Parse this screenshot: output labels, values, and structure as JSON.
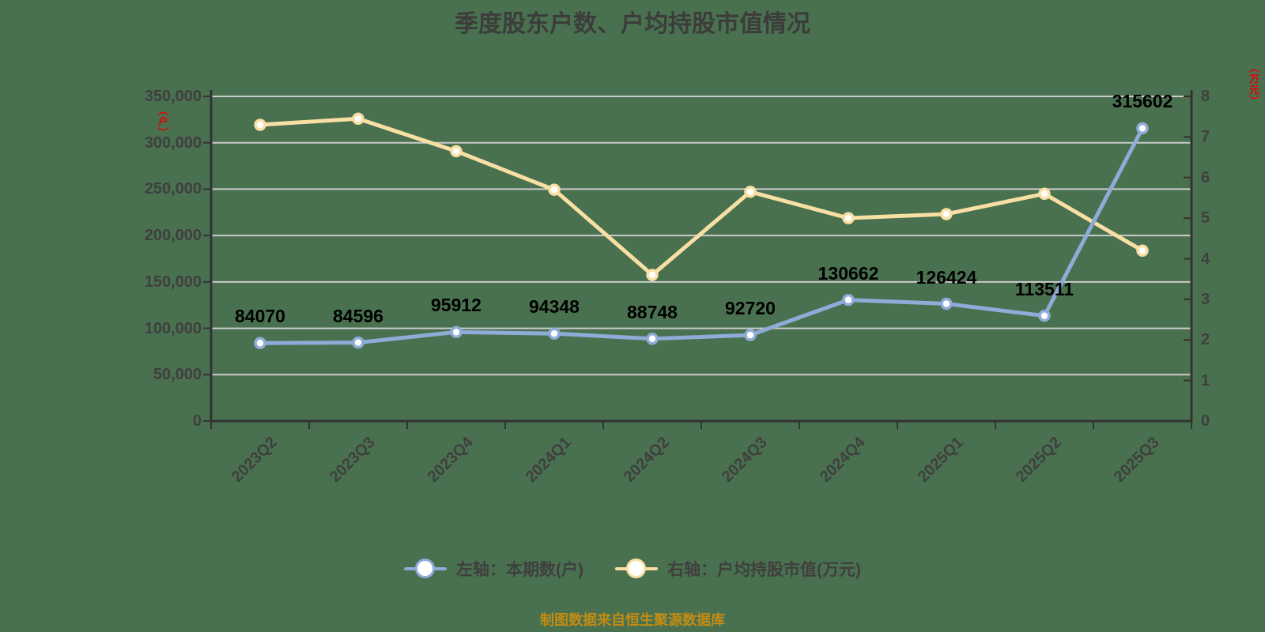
{
  "title": "季度股东户数、户均持股市值情况",
  "footer": "制图数据来自恒生聚源数据库",
  "left_axis": {
    "unit_label": "（户）"
  },
  "right_axis": {
    "unit_label": "（万元）"
  },
  "legend": [
    {
      "label": "左轴：本期数(户)",
      "color": "#8fabd8"
    },
    {
      "label": "右轴：户均持股市值(万元)",
      "color": "#f8dfa3"
    }
  ],
  "colors": {
    "background": "#49714f",
    "grid": "#cccccc",
    "axis": "#333333",
    "text": "#3f3f3f",
    "data_label": "#000000",
    "unit_label": "#e60000",
    "footer": "#c28c14",
    "series_left": "#8fabd8",
    "series_right": "#f8dfa3",
    "marker_fill": "#ffffff"
  },
  "chart_data": {
    "type": "line",
    "title": "季度股东户数、户均持股市值情况",
    "categories": [
      "2023Q2",
      "2023Q3",
      "2023Q4",
      "2024Q1",
      "2024Q2",
      "2024Q3",
      "2024Q4",
      "2025Q1",
      "2025Q2",
      "2025Q3"
    ],
    "series": [
      {
        "name": "左轴：本期数(户)",
        "axis": "left",
        "color": "#8fabd8",
        "values": [
          84070,
          84596,
          95912,
          94348,
          88748,
          92720,
          130662,
          126424,
          113511,
          315602
        ],
        "labels": [
          "84070",
          "84596",
          "95912",
          "94348",
          "88748",
          "92720",
          "130662",
          "126424",
          "113511",
          "315602"
        ]
      },
      {
        "name": "右轴：户均持股市值(万元)",
        "axis": "right",
        "color": "#f8dfa3",
        "values": [
          7.3,
          7.45,
          6.65,
          5.7,
          3.6,
          5.65,
          5.0,
          5.1,
          5.6,
          4.2
        ],
        "labels": null
      }
    ],
    "left_axis_max": 350000,
    "left_axis_ticks": [
      "350,000",
      "300,000",
      "250,000",
      "200,000",
      "150,000",
      "100,000",
      "50,000",
      "0"
    ],
    "right_axis_max": 8,
    "right_axis_ticks": [
      "8",
      "7",
      "6",
      "5",
      "4",
      "3",
      "2",
      "1",
      "0"
    ],
    "grid": true,
    "legend_position": "bottom"
  }
}
